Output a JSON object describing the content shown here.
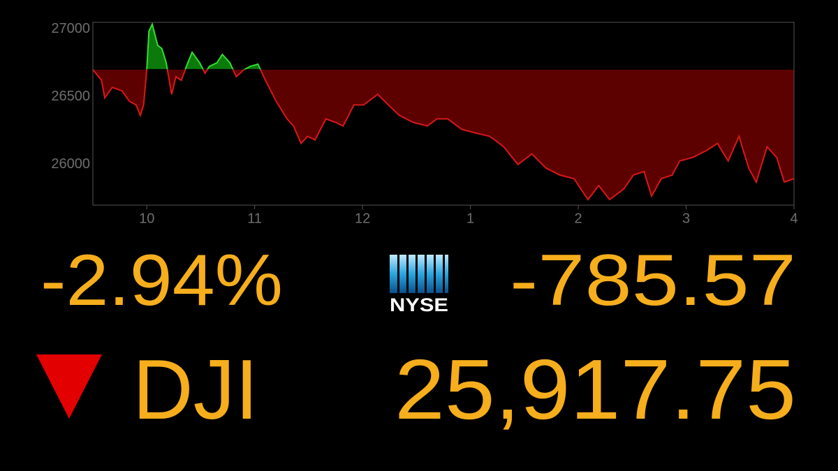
{
  "chart_data": {
    "type": "baseline-area",
    "x": [
      9.5,
      9.58,
      9.61,
      9.68,
      9.77,
      9.84,
      9.9,
      9.94,
      9.97,
      10.0,
      10.02,
      10.05,
      10.1,
      10.14,
      10.18,
      10.23,
      10.27,
      10.32,
      10.38,
      10.42,
      10.49,
      10.54,
      10.58,
      10.65,
      10.7,
      10.77,
      10.83,
      10.9,
      10.96,
      11.03,
      11.1,
      11.2,
      11.3,
      11.36,
      11.43,
      11.49,
      11.56,
      11.66,
      11.75,
      11.82,
      11.92,
      12.01,
      12.14,
      12.24,
      12.34,
      12.47,
      12.6,
      12.69,
      12.79,
      12.92,
      13.05,
      13.18,
      13.31,
      13.44,
      13.57,
      13.7,
      13.83,
      13.96,
      14.09,
      14.19,
      14.29,
      14.42,
      14.51,
      14.61,
      14.68,
      14.77,
      14.87,
      14.94,
      15.06,
      15.19,
      15.29,
      15.39,
      15.49,
      15.58,
      15.65,
      15.75,
      15.84,
      15.91,
      16.0
    ],
    "values": [
      26700,
      26622,
      26492,
      26570,
      26544,
      26466,
      26440,
      26363,
      26440,
      26700,
      26984,
      27036,
      26881,
      26855,
      26751,
      26518,
      26648,
      26622,
      26751,
      26829,
      26751,
      26674,
      26725,
      26751,
      26813,
      26751,
      26648,
      26700,
      26725,
      26741,
      26622,
      26466,
      26337,
      26285,
      26156,
      26208,
      26182,
      26337,
      26311,
      26285,
      26440,
      26440,
      26518,
      26440,
      26363,
      26311,
      26285,
      26337,
      26337,
      26259,
      26233,
      26208,
      26130,
      26000,
      26078,
      25974,
      25922,
      25896,
      25741,
      25845,
      25741,
      25818,
      25922,
      25948,
      25767,
      25896,
      25922,
      26026,
      26052,
      26104,
      26156,
      26026,
      26208,
      25974,
      25870,
      26130,
      26052,
      25870,
      25896
    ],
    "baseline": 26703,
    "up_color": "#33dd33",
    "up_fill": "#0b7a0b",
    "down_color": "#d81818",
    "down_fill": "#5c0000",
    "xlim": [
      9.5,
      16
    ],
    "xticks": [
      10,
      11,
      12,
      {
        "value": 13,
        "label": "1"
      },
      {
        "value": 14,
        "label": "2"
      },
      {
        "value": 15,
        "label": "3"
      },
      {
        "value": 16,
        "label": "4"
      }
    ],
    "ylim": [
      25700,
      27050
    ],
    "yticks": [
      26000,
      26500,
      27000
    ]
  },
  "ticker": {
    "percent_change": "-2.94%",
    "point_change": "-785.57",
    "symbol": "DJI",
    "price": "25,917.75",
    "exchange": "NYSE"
  }
}
